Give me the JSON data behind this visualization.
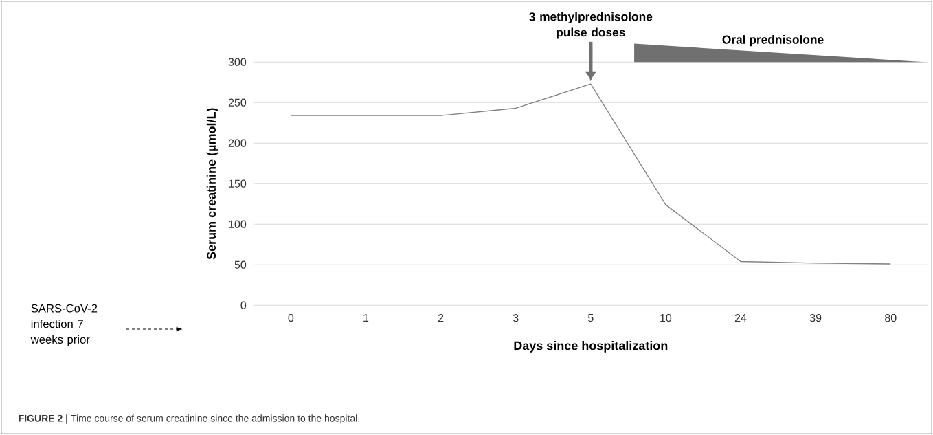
{
  "chart_data": {
    "type": "line",
    "xlabel": "Days since hospitalization",
    "ylabel": "Serum creatinine (µmol/L)",
    "categories": [
      "0",
      "1",
      "2",
      "3",
      "5",
      "10",
      "24",
      "39",
      "80"
    ],
    "values": [
      234,
      234,
      234,
      243,
      273,
      124,
      54,
      52,
      51
    ],
    "color": "#808080",
    "marker": "none",
    "ylim": [
      0,
      300
    ],
    "yticks": [
      0,
      50,
      100,
      150,
      200,
      250,
      300
    ],
    "grid": "y",
    "annotations": [
      "3 methylprednisolone pulse doses",
      "Oral prednisolone",
      "SARS-CoV-2 infection 7 weeks prior",
      "**FIGURE 2 |** Time course of serum creatinine since the admission to the hospital."
    ]
  }
}
